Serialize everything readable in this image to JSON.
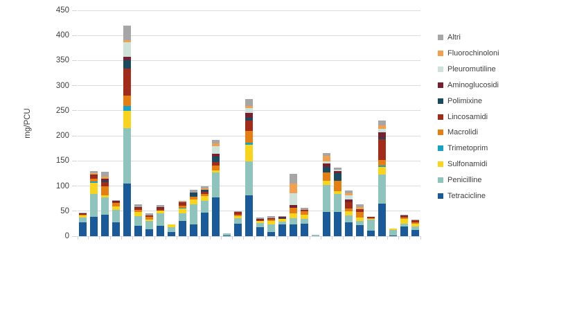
{
  "chart_data": {
    "type": "bar",
    "stacked": true,
    "title": "",
    "ylabel": "mg/PCU",
    "ylim": [
      0,
      450
    ],
    "y_ticks": [
      0,
      50,
      100,
      150,
      200,
      250,
      300,
      350,
      400,
      450
    ],
    "grid": "horizontal",
    "legend_position": "right",
    "x_axis": {
      "num_bars": 31,
      "categories_labeled": false,
      "tick_marks": "category-boundaries"
    },
    "legend_order_top_to_bottom": [
      "Altri",
      "Fluorochinoloni",
      "Pleuromutiline",
      "Aminoglucosidi",
      "Polimixine",
      "Lincosamidi",
      "Macrolidi",
      "Trimetoprim",
      "Sulfonamidi",
      "Penicilline",
      "Tetracicline"
    ],
    "series": [
      {
        "name": "Tetracicline",
        "color": "#195a9b",
        "values": [
          28,
          38,
          43,
          28,
          105,
          21,
          14,
          21,
          8,
          31,
          24,
          47,
          78,
          1,
          25,
          81,
          18,
          8,
          23,
          24,
          25,
          0,
          49,
          48,
          28,
          22,
          11.5,
          65,
          2,
          20,
          12
        ]
      },
      {
        "name": "Penicilline",
        "color": "#8fc4bd",
        "values": [
          9,
          46,
          34,
          24,
          111,
          19,
          16,
          25,
          10,
          15,
          40,
          24,
          49,
          4,
          11.5,
          68,
          8,
          16,
          6,
          12.5,
          9,
          3,
          53,
          36,
          14,
          9,
          21,
          58,
          11,
          4.5,
          7
        ]
      },
      {
        "name": "Sulfonamidi",
        "color": "#f8d41c",
        "values": [
          4,
          22,
          5,
          7,
          34,
          8,
          3.5,
          5,
          5,
          9,
          9,
          9,
          4.5,
          0,
          3,
          33,
          4.5,
          6,
          5.5,
          9,
          9,
          0,
          8,
          6,
          8,
          6,
          2.5,
          15,
          2,
          10.5,
          5.5
        ]
      },
      {
        "name": "Trimetoprim",
        "color": "#18a2c4",
        "values": [
          0,
          3,
          0,
          0,
          9,
          0,
          0,
          0,
          0,
          2,
          0,
          0,
          0,
          0,
          0,
          5,
          0,
          0,
          0,
          0,
          0,
          0,
          0,
          0,
          0,
          0,
          0,
          2.5,
          0,
          0,
          0
        ]
      },
      {
        "name": "Macrolidi",
        "color": "#e67f12",
        "values": [
          2,
          6,
          17,
          7,
          21,
          4,
          4.5,
          0,
          0,
          3.5,
          5.5,
          4.5,
          10,
          0,
          3.5,
          23,
          0,
          2.5,
          0,
          10.5,
          7,
          0,
          17,
          21,
          5.5,
          12,
          1.5,
          12,
          0,
          2.5,
          3
        ]
      },
      {
        "name": "Lincosamidi",
        "color": "#a32b1a",
        "values": [
          1.5,
          6,
          9,
          2,
          54,
          4,
          3,
          4,
          0,
          6,
          0,
          4.5,
          6,
          0,
          5,
          21,
          3,
          3,
          0,
          0,
          3,
          0,
          0,
          0,
          12.5,
          4.5,
          2.5,
          41,
          0,
          2,
          4
        ]
      },
      {
        "name": "Polimixine",
        "color": "#1a4a5f",
        "values": [
          0,
          0,
          3,
          0,
          16,
          0,
          0,
          0,
          0,
          0,
          9,
          4,
          11,
          0,
          0,
          5,
          0,
          0,
          2,
          0,
          0,
          0,
          11.5,
          14,
          0,
          0,
          0,
          3,
          0,
          0,
          0
        ]
      },
      {
        "name": "Aminoglucosidi",
        "color": "#77202f",
        "values": [
          0.5,
          2,
          4,
          2,
          7,
          2,
          0,
          3,
          0,
          1,
          0,
          0,
          6,
          0,
          0,
          10,
          1.5,
          1,
          1.5,
          5.5,
          0,
          0,
          7,
          4.5,
          5.5,
          0,
          0,
          10,
          0,
          1.5,
          0
        ]
      },
      {
        "name": "Pleuromutiline",
        "color": "#cde3da",
        "values": [
          0,
          0,
          0,
          0,
          29,
          0,
          0,
          0,
          0,
          0,
          0,
          0,
          15,
          0,
          0,
          10,
          0,
          0,
          0,
          23.5,
          0,
          0,
          4,
          3,
          8,
          0,
          0,
          7,
          0,
          0,
          0
        ]
      },
      {
        "name": "Fluorochinoloni",
        "color": "#f0a04e",
        "values": [
          0,
          2,
          4,
          0,
          4,
          0,
          0,
          0,
          0,
          1,
          0,
          2,
          6,
          0,
          0,
          3,
          0,
          0,
          0,
          19.5,
          0,
          0,
          10,
          0,
          4.5,
          4.5,
          0,
          8,
          0,
          0,
          0
        ]
      },
      {
        "name": "Altri",
        "color": "#a6a6a6",
        "values": [
          1,
          5,
          9,
          1,
          30,
          6,
          4,
          4,
          0,
          2.5,
          5.5,
          5,
          6.5,
          0,
          2,
          15,
          2,
          3.5,
          2,
          20,
          4,
          0,
          6.5,
          4.5,
          5,
          6,
          0,
          9,
          0,
          1,
          1.5
        ]
      }
    ]
  }
}
